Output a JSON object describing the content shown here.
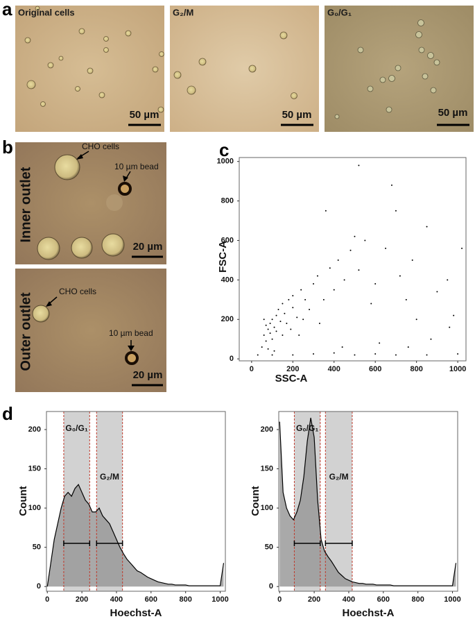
{
  "panel_labels": [
    "a",
    "b",
    "c",
    "d"
  ],
  "panel_a": [
    {
      "label": "Original cells",
      "scale_bar": "50 µm"
    },
    {
      "label": "G₂/M",
      "scale_bar": "50 µm"
    },
    {
      "label": "G₀/G₁",
      "scale_bar": "50 µm"
    }
  ],
  "panel_b": [
    {
      "outlet": "Inner outlet",
      "cells": "CHO cells",
      "bead": "10 µm bead",
      "scale_bar": "20 µm"
    },
    {
      "outlet": "Outer outlet",
      "cells": "CHO cells",
      "bead": "10 µm bead",
      "scale_bar": "20 µm"
    }
  ],
  "chart_data": [
    {
      "type": "scatter",
      "x_label": "SSC-A",
      "y_label": "FSC-A",
      "color": "#000000",
      "xlim": [
        -60,
        1040
      ],
      "ylim": [
        -10,
        1020
      ],
      "xticks": [
        0,
        200,
        400,
        600,
        800,
        1000
      ],
      "yticks": [
        0,
        200,
        400,
        600,
        800,
        1000
      ],
      "x": [
        60,
        80,
        100,
        70,
        90,
        120,
        110,
        50,
        130,
        150,
        140,
        100,
        80,
        60,
        160,
        180,
        200,
        90,
        70,
        120,
        170,
        200,
        220,
        240,
        260,
        280,
        300,
        250,
        190,
        150,
        110,
        30,
        100,
        200,
        300,
        400,
        500,
        600,
        700,
        850,
        1000,
        320,
        350,
        380,
        400,
        420,
        450,
        480,
        500,
        520,
        520,
        550,
        580,
        600,
        650,
        680,
        700,
        720,
        750,
        780,
        800,
        850,
        870,
        900,
        950,
        980,
        1020,
        360,
        440,
        620,
        760,
        960,
        230,
        330
      ],
      "y": [
        120,
        150,
        200,
        90,
        180,
        220,
        160,
        60,
        250,
        280,
        190,
        100,
        50,
        200,
        230,
        300,
        260,
        130,
        170,
        140,
        180,
        320,
        210,
        350,
        300,
        250,
        380,
        200,
        150,
        120,
        40,
        20,
        20,
        20,
        25,
        30,
        20,
        25,
        20,
        20,
        25,
        420,
        300,
        460,
        350,
        500,
        400,
        550,
        620,
        980,
        450,
        600,
        280,
        380,
        560,
        880,
        750,
        420,
        300,
        500,
        200,
        670,
        100,
        340,
        400,
        220,
        560,
        750,
        60,
        80,
        60,
        160,
        120,
        180
      ]
    },
    {
      "type": "histogram",
      "x_label": "Hoechst-A",
      "y_label": "Count",
      "color": "#000000",
      "fill": "#9a9a9a",
      "xlim": [
        -5,
        1030
      ],
      "ylim": [
        -6,
        223
      ],
      "xticks": [
        0,
        200,
        400,
        600,
        800,
        1000
      ],
      "yticks": [
        0,
        50,
        100,
        150,
        200
      ],
      "gates": [
        {
          "name": "G₀/G₁",
          "range": [
            95,
            245
          ],
          "level": 55
        },
        {
          "name": "G₂/M",
          "range": [
            285,
            435
          ],
          "level": 55
        }
      ],
      "x": [
        0,
        20,
        40,
        60,
        80,
        100,
        120,
        140,
        160,
        180,
        200,
        220,
        240,
        260,
        280,
        300,
        320,
        340,
        360,
        380,
        400,
        420,
        440,
        460,
        480,
        500,
        520,
        540,
        560,
        580,
        600,
        620,
        640,
        660,
        680,
        700,
        720,
        740,
        760,
        780,
        800,
        820,
        840,
        860,
        880,
        900,
        920,
        940,
        960,
        980,
        1000,
        1020
      ],
      "values": [
        0,
        30,
        60,
        80,
        100,
        115,
        120,
        115,
        125,
        130,
        120,
        110,
        105,
        95,
        95,
        100,
        90,
        85,
        80,
        70,
        60,
        50,
        42,
        35,
        30,
        25,
        20,
        18,
        15,
        12,
        10,
        8,
        6,
        5,
        4,
        3,
        3,
        2,
        2,
        2,
        2,
        1,
        1,
        1,
        1,
        1,
        1,
        1,
        1,
        1,
        1,
        30
      ]
    },
    {
      "type": "histogram",
      "x_label": "Hoechst-A",
      "y_label": "Count",
      "color": "#000000",
      "fill": "#9a9a9a",
      "xlim": [
        -5,
        1030
      ],
      "ylim": [
        -6,
        223
      ],
      "xticks": [
        0,
        200,
        400,
        600,
        800,
        1000
      ],
      "yticks": [
        0,
        50,
        100,
        150,
        200
      ],
      "gates": [
        {
          "name": "G₀/G₁",
          "range": [
            85,
            235
          ],
          "level": 55
        },
        {
          "name": "G₂/M",
          "range": [
            265,
            420
          ],
          "level": 55
        }
      ],
      "x": [
        0,
        20,
        40,
        60,
        80,
        100,
        120,
        140,
        160,
        180,
        200,
        220,
        240,
        260,
        280,
        300,
        320,
        340,
        360,
        380,
        400,
        420,
        440,
        460,
        480,
        500,
        520,
        540,
        560,
        580,
        600,
        620,
        640,
        660,
        680,
        700,
        720,
        740,
        760,
        780,
        800,
        820,
        840,
        860,
        880,
        900,
        920,
        940,
        960,
        980,
        1000,
        1020
      ],
      "values": [
        210,
        120,
        100,
        90,
        85,
        95,
        110,
        140,
        185,
        215,
        190,
        110,
        60,
        45,
        38,
        32,
        25,
        18,
        14,
        10,
        8,
        6,
        5,
        4,
        4,
        3,
        3,
        3,
        2,
        2,
        2,
        2,
        2,
        1,
        1,
        1,
        1,
        1,
        1,
        1,
        1,
        1,
        1,
        1,
        1,
        1,
        1,
        1,
        1,
        1,
        1,
        30
      ]
    }
  ]
}
